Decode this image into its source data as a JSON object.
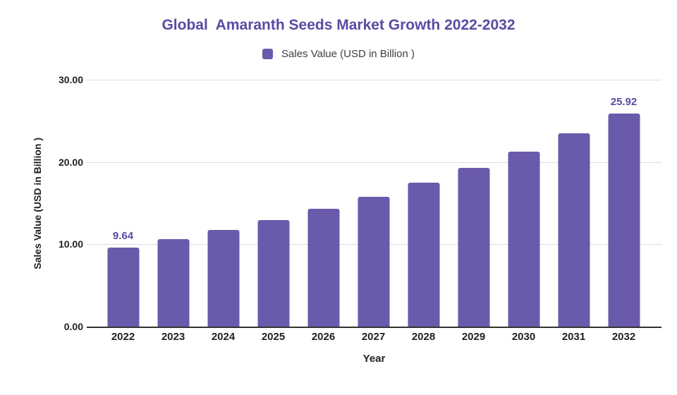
{
  "chart_data": {
    "type": "bar",
    "title": "Global  Amaranth Seeds Market Growth 2022-2032",
    "legend": {
      "label": "Sales Value (USD in Billion )",
      "position": "top"
    },
    "xlabel": "Year",
    "ylabel": "Sales Value (USD in Billion )",
    "categories": [
      "2022",
      "2023",
      "2024",
      "2025",
      "2026",
      "2027",
      "2028",
      "2029",
      "2030",
      "2031",
      "2032"
    ],
    "values": [
      9.64,
      10.64,
      11.75,
      12.97,
      14.32,
      15.81,
      17.45,
      19.27,
      21.27,
      23.48,
      25.92
    ],
    "point_labels": [
      "9.64",
      "",
      "",
      "",
      "",
      "",
      "",
      "",
      "",
      "",
      "25.92"
    ],
    "ylim": [
      0,
      30
    ],
    "ytick_labels_top_down": [
      "30.00",
      "20.00",
      "10.00",
      "0.00"
    ],
    "grid": true,
    "legend_position": "top-center",
    "colors": {
      "bar": "#6A5AAB",
      "title": "#5B4AA2",
      "data_label": "#5B4AA2",
      "axis_text": "#202124",
      "legend_text": "#3c4043",
      "gridline": "#dadce0",
      "axis_line": "#333333",
      "background": "#ffffff"
    }
  }
}
